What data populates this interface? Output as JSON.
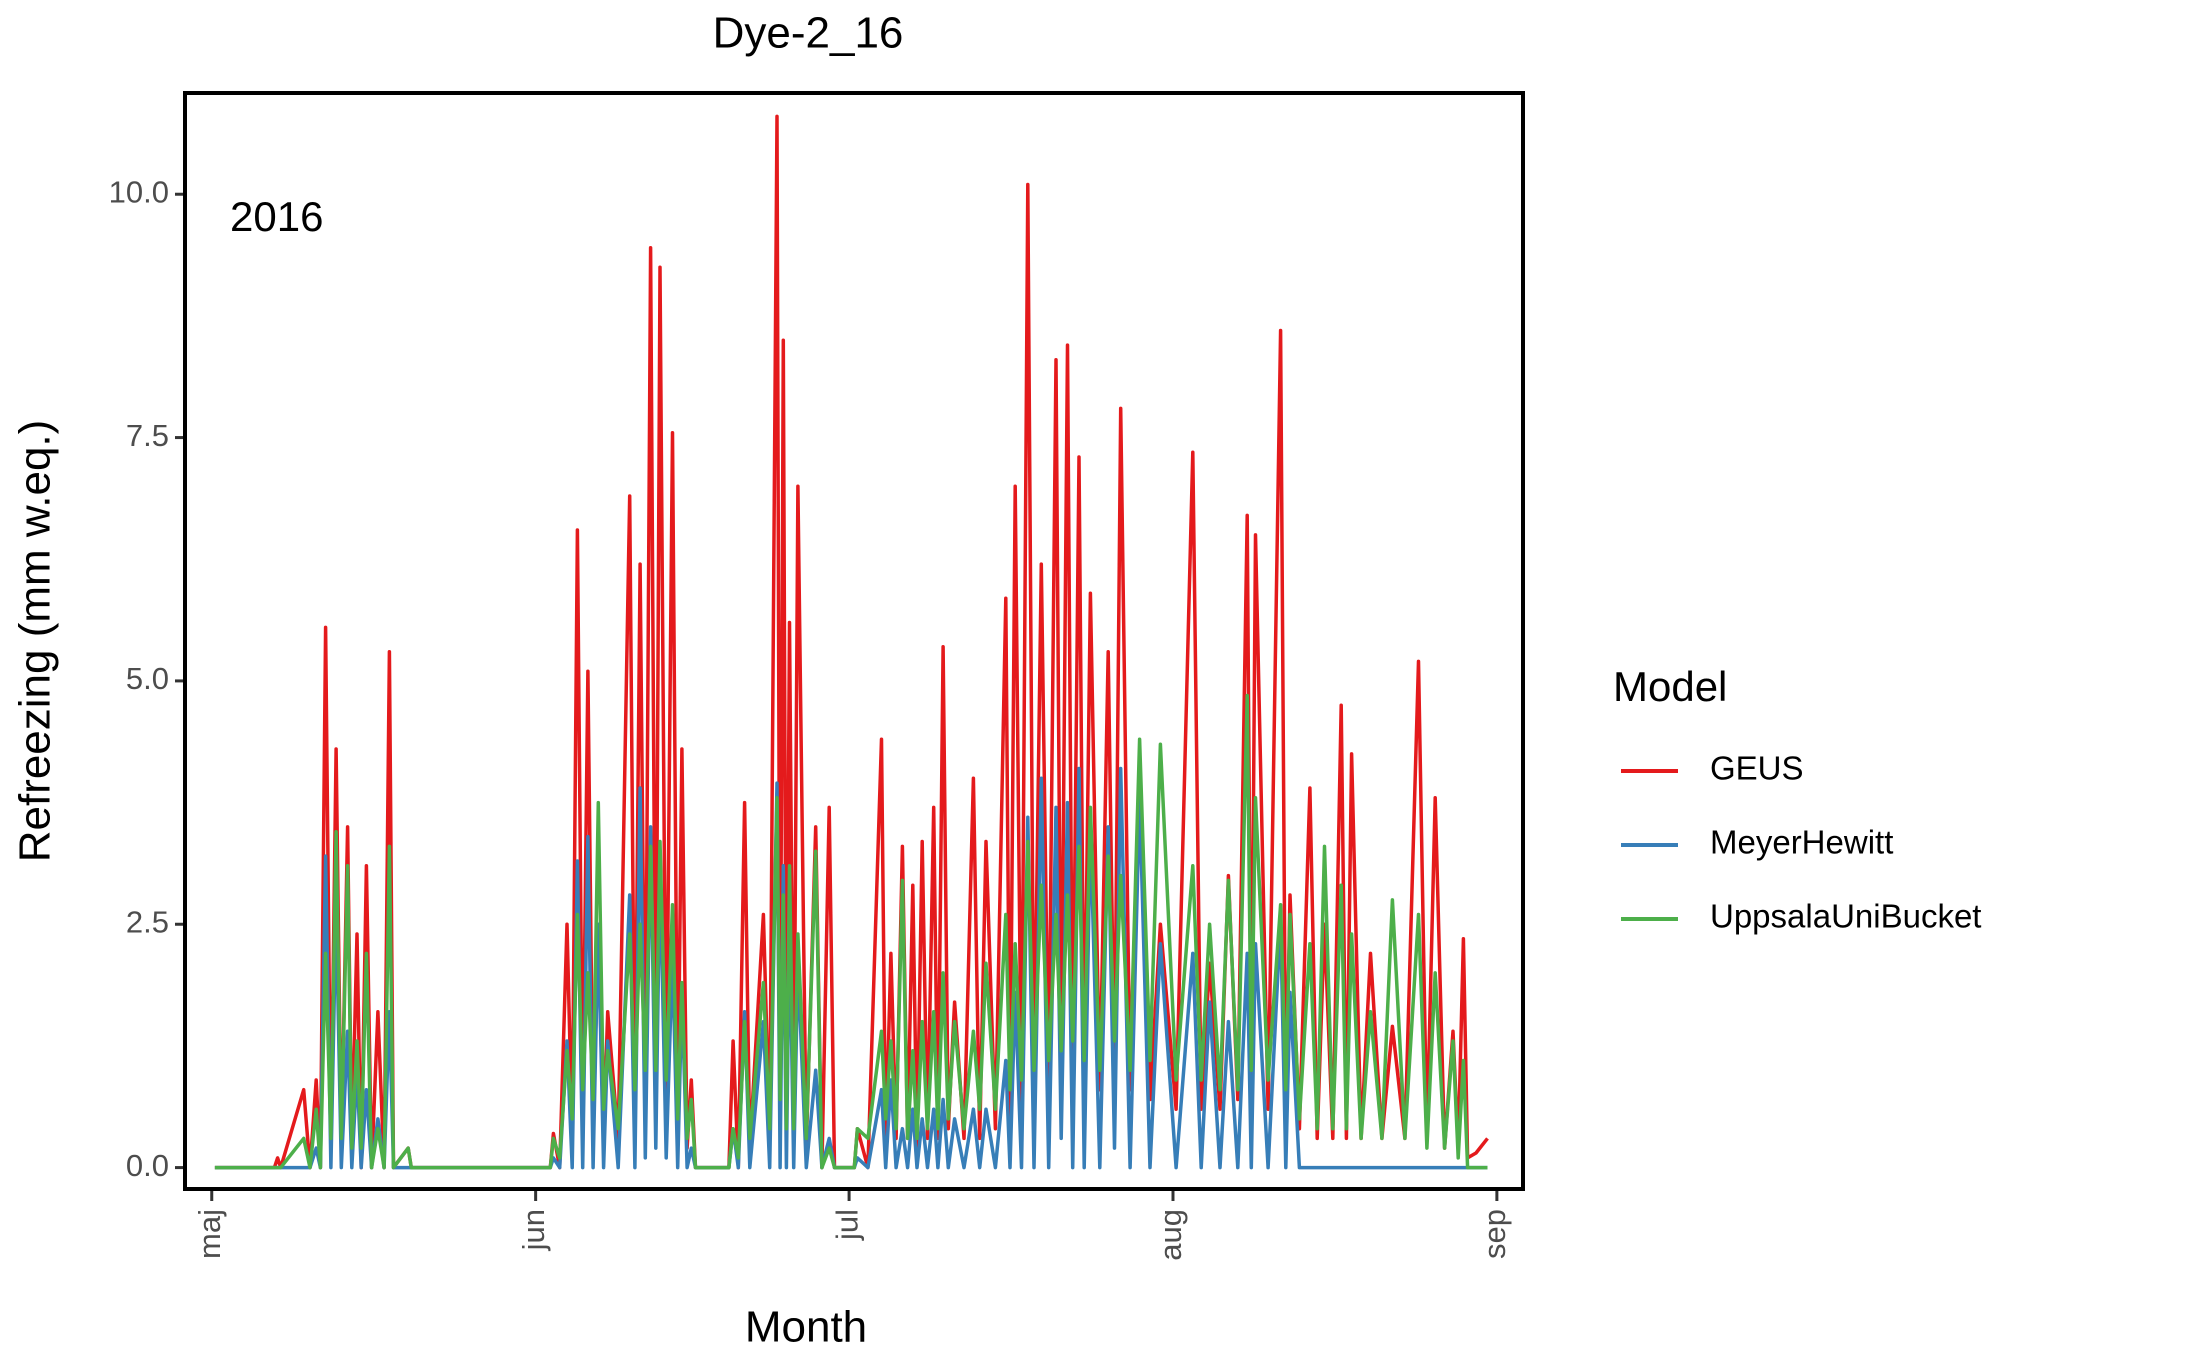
{
  "chart_data": {
    "type": "line",
    "title": "Dye-2_16",
    "annotation": "2016",
    "x_label": "Month",
    "y_label": "Refreezing (mm w.eq.)",
    "legend_title": "Model",
    "xlim": [
      -2.56,
      125.5
    ],
    "xticks": [
      {
        "value": 0,
        "label": "maj"
      },
      {
        "value": 31,
        "label": "jun"
      },
      {
        "value": 61,
        "label": "jul"
      },
      {
        "value": 92,
        "label": "aug"
      },
      {
        "value": 123,
        "label": "sep"
      }
    ],
    "ylim": [
      -0.22,
      11.04
    ],
    "yticks": [
      {
        "value": 0,
        "label": "0.0"
      },
      2.5,
      {
        "value": 5,
        "label": "5.0"
      },
      7.5,
      {
        "value": 10,
        "label": "10.0"
      }
    ],
    "x": [
      0.3,
      6,
      6.3,
      6.6,
      8.8,
      9.4,
      10,
      10.4,
      10.9,
      11.4,
      11.9,
      12.4,
      13,
      13.4,
      13.9,
      14.3,
      14.8,
      15.3,
      15.9,
      16.5,
      17,
      17.4,
      18.8,
      19.1,
      32.4,
      32.7,
      33.3,
      34,
      34.5,
      35,
      35.5,
      36,
      36.5,
      37,
      37.5,
      37.9,
      38.9,
      40,
      40.5,
      41,
      41.5,
      42,
      42.5,
      42.9,
      43.5,
      44.1,
      44.6,
      45,
      45.5,
      45.9,
      46.3,
      49.5,
      49.9,
      50.4,
      51,
      51.5,
      52.8,
      53.4,
      54.1,
      54.4,
      54.7,
      55,
      55.3,
      55.7,
      56.1,
      56.9,
      57.8,
      58.4,
      59.1,
      59.6,
      61.5,
      61.8,
      62.8,
      64.1,
      64.5,
      65,
      65.5,
      66.1,
      66.6,
      67.1,
      67.5,
      68,
      68.5,
      69.1,
      69.5,
      70,
      70.5,
      71.1,
      72,
      72.9,
      73.5,
      74.1,
      75,
      76,
      76.4,
      76.9,
      77.5,
      78.1,
      78.7,
      79.4,
      80.1,
      80.8,
      81.3,
      81.9,
      82.4,
      83,
      83.5,
      84.1,
      85,
      85.8,
      86.4,
      87,
      87.9,
      88.8,
      89.8,
      90.8,
      92.3,
      93.9,
      94.7,
      95.5,
      96.5,
      97.3,
      98.2,
      99.1,
      99.5,
      99.9,
      101.1,
      102.3,
      102.8,
      103.2,
      104.1,
      105.1,
      105.8,
      106.5,
      107.3,
      108.1,
      108.6,
      109.1,
      110,
      110.9,
      112,
      113,
      114.2,
      115.5,
      116.3,
      117.1,
      118,
      118.8,
      119.3,
      119.8,
      120.2,
      121,
      122.1
    ],
    "series": [
      {
        "name": "GEUS",
        "color": "#e41a1c",
        "values": [
          0,
          0,
          0.1,
          0,
          0.8,
          0,
          0.9,
          0,
          5.55,
          0.2,
          4.3,
          0.2,
          3.5,
          0.2,
          2.4,
          0,
          3.1,
          0,
          1.6,
          0,
          5.3,
          0,
          0.2,
          0,
          0,
          0.35,
          0,
          2.5,
          0.3,
          6.55,
          0.5,
          5.1,
          0.4,
          2.4,
          0.3,
          1.6,
          0.3,
          6.9,
          0.5,
          6.2,
          0.6,
          9.45,
          0.7,
          9.25,
          0.6,
          7.55,
          0.4,
          4.3,
          0.2,
          0.9,
          0,
          0,
          1.3,
          0,
          3.75,
          0.2,
          2.6,
          0.3,
          10.8,
          0.5,
          8.5,
          0.4,
          5.6,
          0.3,
          7.0,
          0.2,
          3.5,
          0,
          3.7,
          0,
          0,
          0.4,
          0,
          4.4,
          0.2,
          2.2,
          0.3,
          3.3,
          0.3,
          2.9,
          0.2,
          3.35,
          0.3,
          3.7,
          0.3,
          5.35,
          0.4,
          1.7,
          0.3,
          4.0,
          0.3,
          3.35,
          0.4,
          5.85,
          0.5,
          7.0,
          0.6,
          10.1,
          0.8,
          6.2,
          0.8,
          8.3,
          0.9,
          8.45,
          0.9,
          7.3,
          0.9,
          5.9,
          0.8,
          5.3,
          0.9,
          7.8,
          0.8,
          3.8,
          0.7,
          2.5,
          0.6,
          7.35,
          0.6,
          2.1,
          0.6,
          3.0,
          0.7,
          6.7,
          0.8,
          6.5,
          0.6,
          8.6,
          0.5,
          2.8,
          0.4,
          3.9,
          0.3,
          2.5,
          0.3,
          4.75,
          0.3,
          4.25,
          0.3,
          2.2,
          0.3,
          1.45,
          0.3,
          5.2,
          0.3,
          3.8,
          0.2,
          1.4,
          0.2,
          2.35,
          0.1,
          0.15,
          0.3
        ]
      },
      {
        "name": "MeyerHewitt",
        "color": "#377eb8",
        "values": [
          0,
          0,
          0,
          0,
          0,
          0,
          0.2,
          0,
          3.2,
          0,
          2.7,
          0,
          1.4,
          0,
          1.0,
          0,
          0.8,
          0,
          0.5,
          0,
          1.6,
          0,
          0,
          0,
          0,
          0.1,
          0,
          1.3,
          0,
          3.15,
          0,
          3.4,
          0,
          2.5,
          0,
          1.3,
          0,
          2.8,
          0,
          3.9,
          0.1,
          3.5,
          0.2,
          3.1,
          0.1,
          2.2,
          0,
          1.8,
          0,
          0.2,
          0,
          0,
          0.4,
          0,
          1.6,
          0,
          1.5,
          0,
          3.95,
          0,
          3.1,
          0,
          2.6,
          0,
          2.1,
          0,
          1.0,
          0,
          0.3,
          0,
          0,
          0.1,
          0,
          0.8,
          0,
          0.9,
          0,
          0.4,
          0,
          0.6,
          0,
          0.5,
          0,
          0.6,
          0,
          0.7,
          0,
          0.5,
          0,
          0.6,
          0,
          0.6,
          0,
          1.1,
          0,
          1.8,
          0,
          3.6,
          0,
          4.0,
          0,
          3.7,
          0.3,
          3.75,
          0,
          4.1,
          0,
          3.5,
          0,
          3.5,
          0.2,
          4.1,
          0,
          3.8,
          0,
          2.3,
          0,
          2.2,
          0,
          1.7,
          0,
          1.5,
          0,
          2.2,
          0,
          2.3,
          0,
          2.55,
          0,
          1.8,
          0,
          0,
          0,
          0,
          0,
          0,
          0,
          0,
          0,
          0,
          0,
          0,
          0,
          0,
          0,
          0,
          0,
          0,
          0,
          0,
          0,
          0,
          0
        ]
      },
      {
        "name": "UppsalaUniBucket",
        "color": "#4daf4a",
        "values": [
          0,
          0,
          0,
          0,
          0.3,
          0,
          0.6,
          0,
          2.2,
          0.3,
          3.45,
          0.3,
          3.1,
          0.2,
          1.3,
          0.2,
          2.2,
          0,
          0.4,
          0,
          3.3,
          0,
          0.2,
          0,
          0,
          0.3,
          0.1,
          1.2,
          0.5,
          2.6,
          0.8,
          2.0,
          0.7,
          3.75,
          0.6,
          1.2,
          0.4,
          2.4,
          0.8,
          2.5,
          1.0,
          3.3,
          1.0,
          3.35,
          0.9,
          2.7,
          0.5,
          1.9,
          0.3,
          0.7,
          0,
          0,
          0.4,
          0.1,
          1.5,
          0.3,
          1.9,
          0.4,
          3.8,
          0.7,
          2.8,
          0.4,
          3.1,
          0.4,
          2.4,
          0.3,
          3.25,
          0,
          0.2,
          0,
          0,
          0.4,
          0.3,
          1.4,
          0.5,
          1.3,
          0.4,
          2.95,
          0.3,
          1.2,
          0.3,
          1.5,
          0.4,
          1.6,
          0.4,
          2.0,
          0.5,
          1.5,
          0.4,
          1.4,
          0.6,
          2.1,
          0.6,
          2.6,
          0.8,
          2.3,
          0.9,
          3.35,
          1.0,
          2.9,
          1.1,
          2.6,
          1.2,
          2.8,
          1.3,
          3.3,
          1.1,
          3.7,
          1.0,
          3.2,
          1.3,
          3.0,
          1.0,
          4.4,
          1.1,
          4.35,
          0.9,
          3.1,
          0.9,
          2.5,
          0.8,
          2.95,
          0.8,
          4.85,
          1.0,
          3.8,
          0.9,
          2.7,
          0.8,
          2.6,
          0.5,
          2.3,
          0.4,
          3.3,
          0.4,
          2.9,
          0.4,
          2.4,
          0.3,
          1.6,
          0.3,
          2.75,
          0.3,
          2.6,
          0.2,
          2.0,
          0.2,
          1.3,
          0.1,
          1.1,
          0,
          0,
          0
        ]
      }
    ]
  }
}
